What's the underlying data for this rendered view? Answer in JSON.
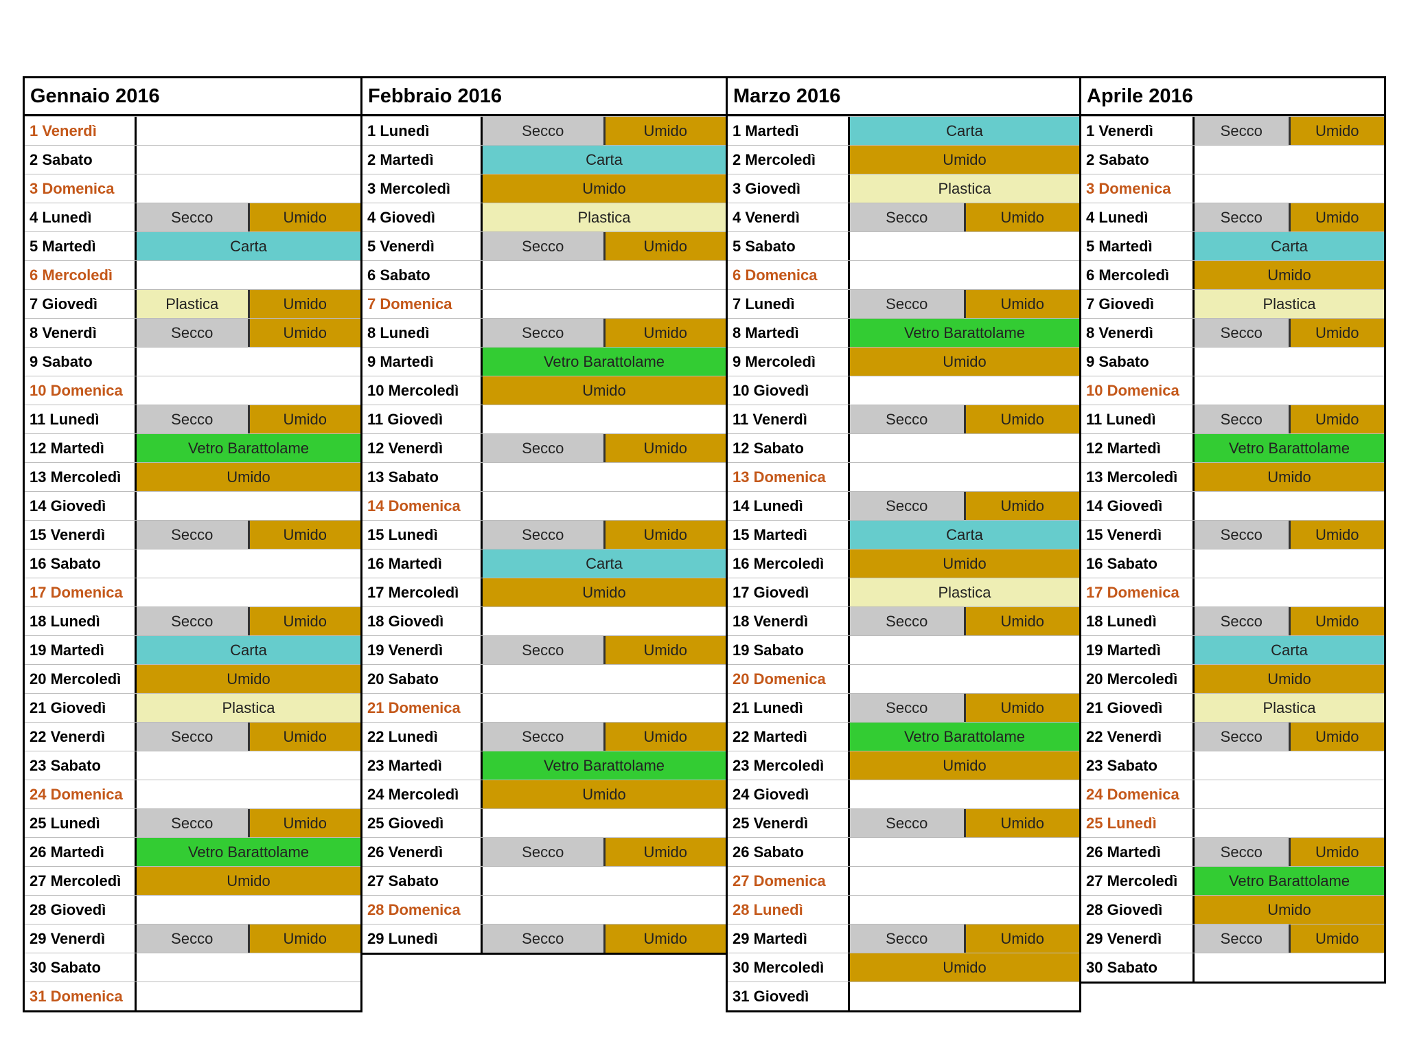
{
  "colors": {
    "Secco": "#c8c8c8",
    "Umido": "#cc9900",
    "Carta": "#66cccc",
    "Plastica": "#eeeeb4",
    "Vetro Barattolame": "#33cc33"
  },
  "months": [
    {
      "title": "Gennaio 2016",
      "days": [
        {
          "label": "1 Venerdì",
          "holiday": true,
          "cells": []
        },
        {
          "label": "2 Sabato",
          "cells": []
        },
        {
          "label": "3 Domenica",
          "holiday": true,
          "cells": []
        },
        {
          "label": "4 Lunedì",
          "cells": [
            "Secco",
            "Umido"
          ]
        },
        {
          "label": "5 Martedì",
          "cells": [
            "Carta"
          ]
        },
        {
          "label": "6 Mercoledì",
          "holiday": true,
          "cells": []
        },
        {
          "label": "7 Giovedì",
          "cells": [
            "Plastica",
            "Umido"
          ]
        },
        {
          "label": "8 Venerdì",
          "cells": [
            "Secco",
            "Umido"
          ]
        },
        {
          "label": "9 Sabato",
          "cells": []
        },
        {
          "label": "10 Domenica",
          "holiday": true,
          "cells": []
        },
        {
          "label": "11 Lunedì",
          "cells": [
            "Secco",
            "Umido"
          ]
        },
        {
          "label": "12 Martedì",
          "cells": [
            "Vetro Barattolame"
          ]
        },
        {
          "label": "13 Mercoledì",
          "cells": [
            "Umido"
          ]
        },
        {
          "label": "14 Giovedì",
          "cells": []
        },
        {
          "label": "15 Venerdì",
          "cells": [
            "Secco",
            "Umido"
          ]
        },
        {
          "label": "16 Sabato",
          "cells": []
        },
        {
          "label": "17 Domenica",
          "holiday": true,
          "cells": []
        },
        {
          "label": "18 Lunedì",
          "cells": [
            "Secco",
            "Umido"
          ]
        },
        {
          "label": "19 Martedì",
          "cells": [
            "Carta"
          ]
        },
        {
          "label": "20 Mercoledì",
          "cells": [
            "Umido"
          ]
        },
        {
          "label": "21 Giovedì",
          "cells": [
            "Plastica"
          ]
        },
        {
          "label": "22 Venerdì",
          "cells": [
            "Secco",
            "Umido"
          ]
        },
        {
          "label": "23 Sabato",
          "cells": []
        },
        {
          "label": "24 Domenica",
          "holiday": true,
          "cells": []
        },
        {
          "label": "25 Lunedì",
          "cells": [
            "Secco",
            "Umido"
          ]
        },
        {
          "label": "26 Martedì",
          "cells": [
            "Vetro Barattolame"
          ]
        },
        {
          "label": "27 Mercoledì",
          "cells": [
            "Umido"
          ]
        },
        {
          "label": "28 Giovedì",
          "cells": []
        },
        {
          "label": "29 Venerdì",
          "cells": [
            "Secco",
            "Umido"
          ]
        },
        {
          "label": "30 Sabato",
          "cells": []
        },
        {
          "label": "31 Domenica",
          "holiday": true,
          "cells": []
        }
      ]
    },
    {
      "title": "Febbraio 2016",
      "days": [
        {
          "label": "1 Lunedì",
          "cells": [
            "Secco",
            "Umido"
          ]
        },
        {
          "label": "2 Martedì",
          "cells": [
            "Carta"
          ]
        },
        {
          "label": "3 Mercoledì",
          "cells": [
            "Umido"
          ]
        },
        {
          "label": "4 Giovedì",
          "cells": [
            "Plastica"
          ]
        },
        {
          "label": "5 Venerdì",
          "cells": [
            "Secco",
            "Umido"
          ]
        },
        {
          "label": "6 Sabato",
          "cells": []
        },
        {
          "label": "7 Domenica",
          "holiday": true,
          "cells": []
        },
        {
          "label": "8 Lunedì",
          "cells": [
            "Secco",
            "Umido"
          ]
        },
        {
          "label": "9 Martedì",
          "cells": [
            "Vetro Barattolame"
          ]
        },
        {
          "label": "10 Mercoledì",
          "cells": [
            "Umido"
          ]
        },
        {
          "label": "11 Giovedì",
          "cells": []
        },
        {
          "label": "12 Venerdì",
          "cells": [
            "Secco",
            "Umido"
          ]
        },
        {
          "label": "13 Sabato",
          "cells": []
        },
        {
          "label": "14 Domenica",
          "holiday": true,
          "cells": []
        },
        {
          "label": "15 Lunedì",
          "cells": [
            "Secco",
            "Umido"
          ]
        },
        {
          "label": "16 Martedì",
          "cells": [
            "Carta"
          ]
        },
        {
          "label": "17 Mercoledì",
          "cells": [
            "Umido"
          ]
        },
        {
          "label": "18 Giovedì",
          "cells": []
        },
        {
          "label": "19 Venerdì",
          "cells": [
            "Secco",
            "Umido"
          ]
        },
        {
          "label": "20 Sabato",
          "cells": []
        },
        {
          "label": "21 Domenica",
          "holiday": true,
          "cells": []
        },
        {
          "label": "22 Lunedì",
          "cells": [
            "Secco",
            "Umido"
          ]
        },
        {
          "label": "23 Martedì",
          "cells": [
            "Vetro Barattolame"
          ]
        },
        {
          "label": "24 Mercoledì",
          "cells": [
            "Umido"
          ]
        },
        {
          "label": "25 Giovedì",
          "cells": []
        },
        {
          "label": "26 Venerdì",
          "cells": [
            "Secco",
            "Umido"
          ]
        },
        {
          "label": "27 Sabato",
          "cells": []
        },
        {
          "label": "28 Domenica",
          "holiday": true,
          "cells": []
        },
        {
          "label": "29 Lunedì",
          "cells": [
            "Secco",
            "Umido"
          ]
        }
      ]
    },
    {
      "title": "Marzo 2016",
      "days": [
        {
          "label": "1 Martedì",
          "cells": [
            "Carta"
          ]
        },
        {
          "label": "2 Mercoledì",
          "cells": [
            "Umido"
          ]
        },
        {
          "label": "3 Giovedì",
          "cells": [
            "Plastica"
          ]
        },
        {
          "label": "4 Venerdì",
          "cells": [
            "Secco",
            "Umido"
          ]
        },
        {
          "label": "5 Sabato",
          "cells": []
        },
        {
          "label": "6 Domenica",
          "holiday": true,
          "cells": []
        },
        {
          "label": "7 Lunedì",
          "cells": [
            "Secco",
            "Umido"
          ]
        },
        {
          "label": "8 Martedì",
          "cells": [
            "Vetro Barattolame"
          ]
        },
        {
          "label": "9 Mercoledì",
          "cells": [
            "Umido"
          ]
        },
        {
          "label": "10 Giovedì",
          "cells": []
        },
        {
          "label": "11 Venerdì",
          "cells": [
            "Secco",
            "Umido"
          ]
        },
        {
          "label": "12 Sabato",
          "cells": []
        },
        {
          "label": "13 Domenica",
          "holiday": true,
          "cells": []
        },
        {
          "label": "14 Lunedì",
          "cells": [
            "Secco",
            "Umido"
          ]
        },
        {
          "label": "15 Martedì",
          "cells": [
            "Carta"
          ]
        },
        {
          "label": "16 Mercoledì",
          "cells": [
            "Umido"
          ]
        },
        {
          "label": "17 Giovedì",
          "cells": [
            "Plastica"
          ]
        },
        {
          "label": "18 Venerdì",
          "cells": [
            "Secco",
            "Umido"
          ]
        },
        {
          "label": "19 Sabato",
          "cells": []
        },
        {
          "label": "20 Domenica",
          "holiday": true,
          "cells": []
        },
        {
          "label": "21 Lunedì",
          "cells": [
            "Secco",
            "Umido"
          ]
        },
        {
          "label": "22 Martedì",
          "cells": [
            "Vetro Barattolame"
          ]
        },
        {
          "label": "23 Mercoledì",
          "cells": [
            "Umido"
          ]
        },
        {
          "label": "24 Giovedì",
          "cells": []
        },
        {
          "label": "25 Venerdì",
          "cells": [
            "Secco",
            "Umido"
          ]
        },
        {
          "label": "26 Sabato",
          "cells": []
        },
        {
          "label": "27 Domenica",
          "holiday": true,
          "cells": []
        },
        {
          "label": "28 Lunedì",
          "holiday": true,
          "cells": []
        },
        {
          "label": "29 Martedì",
          "cells": [
            "Secco",
            "Umido"
          ]
        },
        {
          "label": "30 Mercoledì",
          "cells": [
            "Umido"
          ]
        },
        {
          "label": "31 Giovedì",
          "cells": []
        }
      ]
    },
    {
      "title": "Aprile 2016",
      "days": [
        {
          "label": "1 Venerdì",
          "cells": [
            "Secco",
            "Umido"
          ]
        },
        {
          "label": "2 Sabato",
          "cells": []
        },
        {
          "label": "3 Domenica",
          "holiday": true,
          "cells": []
        },
        {
          "label": "4 Lunedì",
          "cells": [
            "Secco",
            "Umido"
          ]
        },
        {
          "label": "5 Martedì",
          "cells": [
            "Carta"
          ]
        },
        {
          "label": "6 Mercoledì",
          "cells": [
            "Umido"
          ]
        },
        {
          "label": "7 Giovedì",
          "cells": [
            "Plastica"
          ]
        },
        {
          "label": "8 Venerdì",
          "cells": [
            "Secco",
            "Umido"
          ]
        },
        {
          "label": "9 Sabato",
          "cells": []
        },
        {
          "label": "10 Domenica",
          "holiday": true,
          "cells": []
        },
        {
          "label": "11 Lunedì",
          "cells": [
            "Secco",
            "Umido"
          ]
        },
        {
          "label": "12 Martedì",
          "cells": [
            "Vetro Barattolame"
          ]
        },
        {
          "label": "13 Mercoledì",
          "cells": [
            "Umido"
          ]
        },
        {
          "label": "14 Giovedì",
          "cells": []
        },
        {
          "label": "15 Venerdì",
          "cells": [
            "Secco",
            "Umido"
          ]
        },
        {
          "label": "16 Sabato",
          "cells": []
        },
        {
          "label": "17 Domenica",
          "holiday": true,
          "cells": []
        },
        {
          "label": "18 Lunedì",
          "cells": [
            "Secco",
            "Umido"
          ]
        },
        {
          "label": "19 Martedì",
          "cells": [
            "Carta"
          ]
        },
        {
          "label": "20 Mercoledì",
          "cells": [
            "Umido"
          ]
        },
        {
          "label": "21 Giovedì",
          "cells": [
            "Plastica"
          ]
        },
        {
          "label": "22 Venerdì",
          "cells": [
            "Secco",
            "Umido"
          ]
        },
        {
          "label": "23 Sabato",
          "cells": []
        },
        {
          "label": "24 Domenica",
          "holiday": true,
          "cells": []
        },
        {
          "label": "25 Lunedì",
          "holiday": true,
          "cells": []
        },
        {
          "label": "26 Martedì",
          "cells": [
            "Secco",
            "Umido"
          ]
        },
        {
          "label": "27 Mercoledì",
          "cells": [
            "Vetro Barattolame"
          ]
        },
        {
          "label": "28 Giovedì",
          "cells": [
            "Umido"
          ]
        },
        {
          "label": "29 Venerdì",
          "cells": [
            "Secco",
            "Umido"
          ]
        },
        {
          "label": "30 Sabato",
          "cells": []
        }
      ]
    }
  ]
}
